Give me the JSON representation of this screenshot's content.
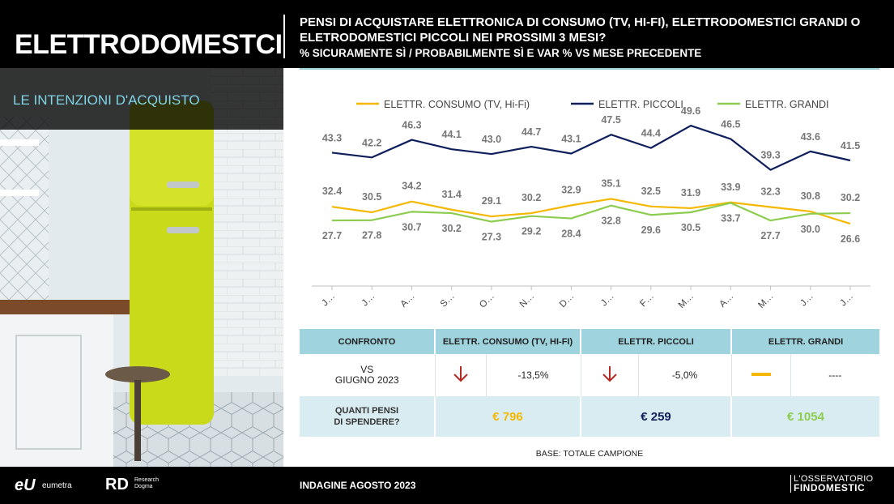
{
  "header": {
    "brand_title": "ELETTRODOMESTCI",
    "question": "PENSI DI ACQUISTARE ELETTRONICA DI CONSUMO (TV, HI-FI), ELETTRODOMESTICI GRANDI O ELETRODOMESTICI PICCOLI NEI PROSSIMI 3 MESI?",
    "subquestion": "% SICURAMENTE SÌ / PROBABILMENTE SÌ E VAR % VS MESE PRECEDENTE"
  },
  "side": {
    "section_title": "LE INTENZIONI D'ACQUISTO"
  },
  "colors": {
    "consumo": "#f5b800",
    "piccoli": "#0f1f5c",
    "grandi": "#8ccc4f",
    "down_arrow": "#b22a22",
    "header_cell": "#9fd3de",
    "spend_cell": "#d9ecf1"
  },
  "chart_data": {
    "type": "line",
    "categories": [
      "J…",
      "J…",
      "A…",
      "S…",
      "O…",
      "N…",
      "D…",
      "J…",
      "F…",
      "M…",
      "A…",
      "M…",
      "J…",
      "J…"
    ],
    "series": [
      {
        "name": "ELETTR. CONSUMO (TV, Hi-Fi)",
        "color": "#f5b800",
        "values": [
          32.4,
          30.5,
          34.2,
          31.4,
          29.1,
          30.2,
          32.9,
          35.1,
          32.5,
          31.9,
          33.9,
          32.3,
          30.8,
          26.6
        ]
      },
      {
        "name": "ELETTR. PICCOLI",
        "color": "#0f1f5c",
        "values": [
          43.3,
          42.2,
          46.3,
          44.1,
          43.0,
          44.7,
          43.1,
          47.5,
          44.4,
          49.6,
          46.5,
          39.3,
          43.6,
          41.5
        ]
      },
      {
        "name": "ELETTR. GRANDI",
        "color": "#8ccc4f",
        "values": [
          27.7,
          27.8,
          30.7,
          30.2,
          27.3,
          29.2,
          28.4,
          32.8,
          29.6,
          30.5,
          33.7,
          27.7,
          30.0,
          30.2
        ]
      }
    ],
    "legend_position": "top",
    "grid": false
  },
  "table": {
    "headers": [
      "CONFRONTO",
      "ELETTR. CONSUMO (TV, HI-FI)",
      "ELETTR. PICCOLI",
      "ELETTR. GRANDI"
    ],
    "vs_label_line1": "VS",
    "vs_label_line2": "GIUGNO 2023",
    "changes": [
      {
        "icon": "down-arrow-icon",
        "value": "-13,5%"
      },
      {
        "icon": "down-arrow-icon",
        "value": "-5,0%"
      },
      {
        "icon": "dash-icon",
        "value": "----"
      }
    ],
    "spend_label_line1": "QUANTI PENSI",
    "spend_label_line2": "DI SPENDERE?",
    "spend": [
      "€ 796",
      "€ 259",
      "€ 1054"
    ]
  },
  "footer": {
    "base": "BASE: TOTALE CAMPIONE",
    "survey": "INDAGINE AGOSTO  2023",
    "logo_eumetra_mark": "eU",
    "logo_eumetra_text": "eumetra",
    "logo_rd_mark": "RD",
    "logo_rd_text": "Research Dogma",
    "logo_oss_line1": "L'OSSERVATORIO",
    "logo_oss_line2": "FINDOMESTIC"
  }
}
